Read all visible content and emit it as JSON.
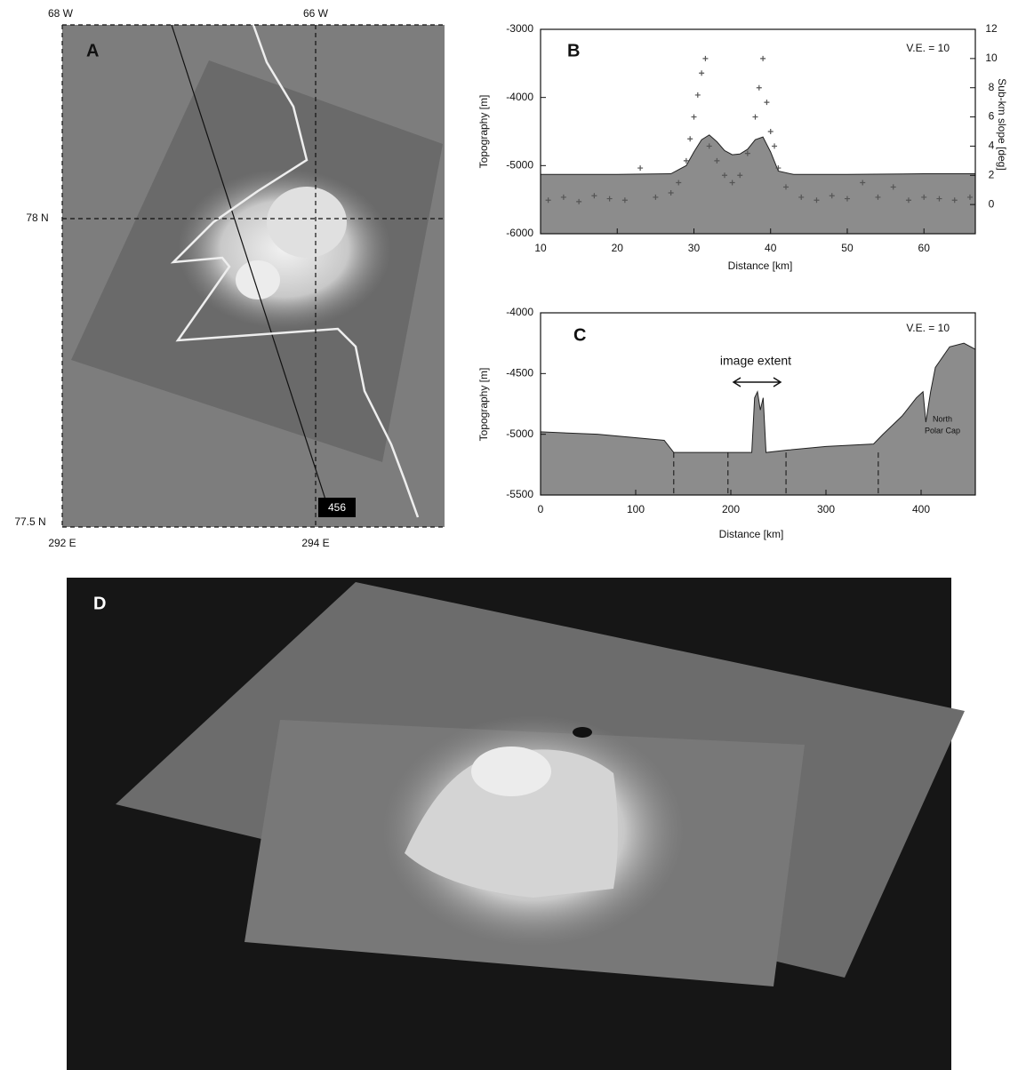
{
  "panel_a": {
    "label": "A",
    "lon_left": "68 W",
    "lon_right": "66 W",
    "lat_mid": "78 N",
    "lat_bottom": "77.5 N",
    "east_left": "292 E",
    "east_right": "294 E",
    "track": "456"
  },
  "chart_data": [
    {
      "type": "area",
      "label": "B",
      "annotation": "V.E. = 10",
      "xlabel": "Distance [km]",
      "ylabel": "Topography [m]",
      "y2label": "Sub-km slope [deg]",
      "xlim": [
        10,
        66.7
      ],
      "xticks": [
        10,
        20,
        30,
        40,
        50,
        60
      ],
      "ylim": [
        -6000,
        -3000
      ],
      "yticks": [
        -6000,
        -5000,
        -4000,
        -3000
      ],
      "y2lim": [
        -2,
        12
      ],
      "y2ticks": [
        0,
        2,
        4,
        6,
        8,
        10,
        12
      ],
      "series": [
        {
          "type": "area",
          "color": "#8c8c8c",
          "x": [
            10,
            20,
            27,
            29,
            30,
            31,
            32,
            33,
            34,
            35,
            36,
            37,
            38,
            39,
            40,
            41,
            43,
            50,
            60,
            66.7
          ],
          "values": [
            -5130,
            -5130,
            -5120,
            -5000,
            -4800,
            -4620,
            -4550,
            -4650,
            -4780,
            -4840,
            -4830,
            -4760,
            -4620,
            -4580,
            -4800,
            -5080,
            -5130,
            -5130,
            -5120,
            -5120
          ]
        },
        {
          "type": "scatter",
          "axis": "y2",
          "color": "#555555",
          "x": [
            11,
            13,
            15,
            17,
            19,
            21,
            23,
            25,
            27,
            28,
            29,
            29.5,
            30,
            30.5,
            31,
            31.5,
            32,
            33,
            34,
            35,
            36,
            37,
            38,
            38.5,
            39,
            39.5,
            40,
            40.5,
            41,
            42,
            44,
            46,
            48,
            50,
            52,
            54,
            56,
            58,
            60,
            62,
            64,
            66
          ],
          "values": [
            0.3,
            0.5,
            0.2,
            0.6,
            0.4,
            0.3,
            2.5,
            0.5,
            0.8,
            1.5,
            3,
            4.5,
            6,
            7.5,
            9,
            10,
            4,
            3,
            2,
            1.5,
            2,
            3.5,
            6,
            8,
            10,
            7,
            5,
            4,
            2.5,
            1.2,
            0.5,
            0.3,
            0.6,
            0.4,
            1.5,
            0.5,
            1.2,
            0.3,
            0.5,
            0.4,
            0.3,
            0.5
          ]
        }
      ]
    },
    {
      "type": "area",
      "label": "C",
      "annotation": "V.E. = 10",
      "xlabel": "Distance [km]",
      "ylabel": "Topography [m]",
      "extent_label": "image extent",
      "cap_label": [
        "North",
        "Polar Cap"
      ],
      "xlim": [
        0,
        457
      ],
      "xticks": [
        0,
        100,
        200,
        300,
        400
      ],
      "ylim": [
        -5500,
        -4000
      ],
      "yticks": [
        -5500,
        -5000,
        -4500,
        -4000
      ],
      "markers": [
        140,
        197,
        258,
        355
      ],
      "series": [
        {
          "type": "area",
          "color": "#8c8c8c",
          "x": [
            0,
            60,
            130,
            140,
            200,
            222,
            225,
            228,
            231,
            234,
            237,
            260,
            300,
            350,
            360,
            380,
            395,
            402,
            405,
            410,
            415,
            430,
            445,
            457
          ],
          "values": [
            -4980,
            -5000,
            -5050,
            -5150,
            -5150,
            -5150,
            -4700,
            -4650,
            -4800,
            -4700,
            -5150,
            -5130,
            -5100,
            -5080,
            -5000,
            -4850,
            -4700,
            -4650,
            -4900,
            -4650,
            -4450,
            -4280,
            -4250,
            -4300
          ]
        }
      ]
    }
  ],
  "panel_d": {
    "label": "D"
  }
}
